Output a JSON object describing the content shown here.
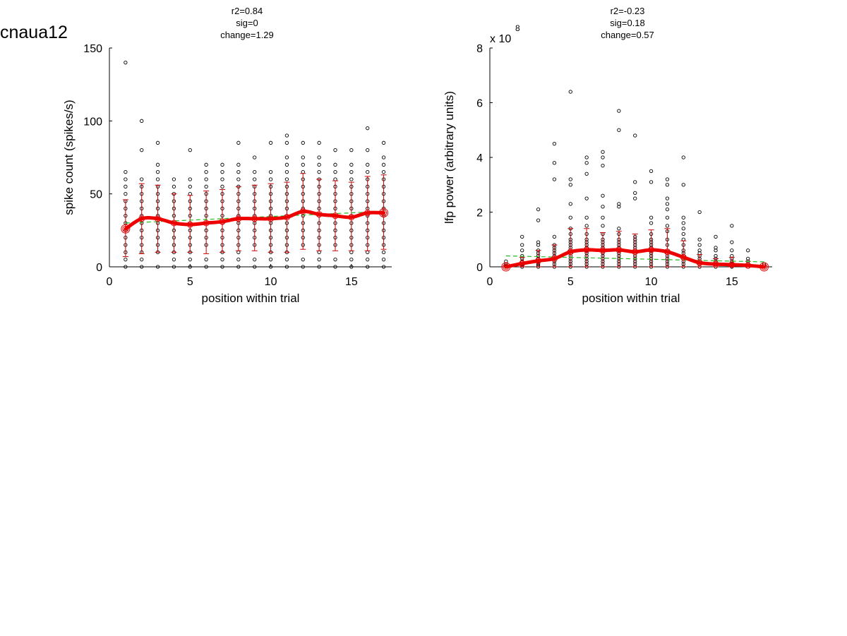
{
  "figure": {
    "title": "cnaua12"
  },
  "chart_data": [
    {
      "type": "scatter",
      "title_lines": [
        "r2=0.84",
        "sig=0",
        "change=1.29"
      ],
      "xlabel": "position within trial",
      "ylabel": "spike count (spikes/s)",
      "exponent_label": "",
      "xlim": [
        0,
        17.5
      ],
      "ylim": [
        0,
        150
      ],
      "xticks": [
        0,
        5,
        10,
        15
      ],
      "yticks": [
        0,
        50,
        100,
        150
      ],
      "colors": {
        "points": "#000000",
        "mean": "#ee0000",
        "errorbar": "#cc0000",
        "fit": "#22bb22"
      },
      "points": [
        {
          "x": 1,
          "y": [
            0,
            5,
            10,
            15,
            20,
            25,
            30,
            35,
            40,
            45,
            50,
            55,
            60,
            65,
            140
          ]
        },
        {
          "x": 2,
          "y": [
            0,
            5,
            10,
            15,
            20,
            25,
            30,
            35,
            40,
            45,
            50,
            55,
            60,
            80,
            100
          ]
        },
        {
          "x": 3,
          "y": [
            0,
            10,
            15,
            20,
            25,
            30,
            35,
            40,
            45,
            50,
            55,
            60,
            65,
            70,
            85
          ]
        },
        {
          "x": 4,
          "y": [
            0,
            5,
            10,
            15,
            20,
            25,
            30,
            35,
            40,
            45,
            50,
            55,
            60
          ]
        },
        {
          "x": 5,
          "y": [
            0,
            5,
            10,
            15,
            20,
            25,
            30,
            35,
            40,
            45,
            50,
            55,
            60,
            80
          ]
        },
        {
          "x": 6,
          "y": [
            0,
            5,
            15,
            20,
            25,
            30,
            35,
            40,
            45,
            50,
            55,
            60,
            65,
            70
          ]
        },
        {
          "x": 7,
          "y": [
            0,
            5,
            10,
            15,
            20,
            25,
            30,
            35,
            40,
            45,
            50,
            55,
            60,
            65,
            70
          ]
        },
        {
          "x": 8,
          "y": [
            0,
            5,
            10,
            15,
            20,
            25,
            30,
            35,
            40,
            45,
            50,
            55,
            60,
            65,
            70,
            85
          ]
        },
        {
          "x": 9,
          "y": [
            0,
            5,
            15,
            20,
            25,
            30,
            35,
            40,
            45,
            50,
            55,
            60,
            65,
            75
          ]
        },
        {
          "x": 10,
          "y": [
            0,
            5,
            10,
            15,
            20,
            25,
            30,
            35,
            40,
            45,
            50,
            55,
            60,
            65,
            85
          ]
        },
        {
          "x": 11,
          "y": [
            0,
            5,
            10,
            15,
            20,
            25,
            30,
            35,
            40,
            45,
            50,
            55,
            60,
            65,
            70,
            75,
            85,
            90
          ]
        },
        {
          "x": 12,
          "y": [
            0,
            5,
            15,
            20,
            25,
            30,
            35,
            40,
            45,
            50,
            55,
            60,
            65,
            70,
            75,
            85
          ]
        },
        {
          "x": 13,
          "y": [
            0,
            5,
            10,
            15,
            20,
            25,
            30,
            35,
            40,
            45,
            50,
            55,
            60,
            65,
            70,
            75,
            85
          ]
        },
        {
          "x": 14,
          "y": [
            0,
            5,
            15,
            20,
            25,
            30,
            35,
            40,
            45,
            50,
            55,
            60,
            65,
            70,
            80
          ]
        },
        {
          "x": 15,
          "y": [
            0,
            5,
            10,
            15,
            20,
            25,
            30,
            35,
            40,
            45,
            50,
            55,
            60,
            65,
            70,
            80
          ]
        },
        {
          "x": 16,
          "y": [
            0,
            5,
            10,
            15,
            20,
            25,
            30,
            35,
            40,
            45,
            50,
            55,
            60,
            65,
            70,
            80,
            95
          ]
        },
        {
          "x": 17,
          "y": [
            0,
            5,
            10,
            15,
            20,
            25,
            30,
            35,
            40,
            45,
            50,
            55,
            60,
            65,
            70,
            75,
            85
          ]
        }
      ],
      "mean": {
        "x": [
          1,
          2,
          3,
          4,
          5,
          6,
          7,
          8,
          9,
          10,
          11,
          12,
          13,
          14,
          15,
          16,
          17
        ],
        "y": [
          26,
          33,
          33,
          30,
          29,
          30,
          31,
          33,
          33,
          33,
          34,
          38,
          36,
          35,
          34,
          37,
          37
        ],
        "err_low": [
          7,
          9,
          10,
          10,
          10,
          9,
          10,
          11,
          11,
          10,
          10,
          12,
          11,
          11,
          11,
          11,
          12
        ],
        "err_high": [
          46,
          57,
          56,
          50,
          49,
          52,
          53,
          55,
          56,
          57,
          58,
          64,
          60,
          59,
          58,
          62,
          63
        ]
      },
      "fit": {
        "x": [
          1,
          17
        ],
        "y": [
          30,
          38
        ]
      },
      "marker_x": [
        1,
        17
      ]
    },
    {
      "type": "scatter",
      "title_lines": [
        "r2=-0.23",
        "sig=0.18",
        "change=0.57"
      ],
      "xlabel": "position within trial",
      "ylabel": "lfp power (arbitrary units)",
      "exponent_label": "x 10",
      "exponent_power": "8",
      "xlim": [
        0,
        17.5
      ],
      "ylim": [
        0,
        8
      ],
      "xticks": [
        0,
        5,
        10,
        15
      ],
      "yticks": [
        0,
        2,
        4,
        6,
        8
      ],
      "colors": {
        "points": "#000000",
        "mean": "#ee0000",
        "errorbar": "#cc0000",
        "fit": "#22bb22"
      },
      "points": [
        {
          "x": 1,
          "y": [
            0,
            0.02,
            0.05,
            0.1,
            0.2
          ]
        },
        {
          "x": 2,
          "y": [
            0,
            0.05,
            0.1,
            0.2,
            0.3,
            0.4,
            0.6,
            0.8,
            1.1
          ]
        },
        {
          "x": 3,
          "y": [
            0,
            0.05,
            0.1,
            0.2,
            0.3,
            0.4,
            0.5,
            0.6,
            0.8,
            0.9,
            1.7,
            2.1
          ]
        },
        {
          "x": 4,
          "y": [
            0,
            0.1,
            0.2,
            0.3,
            0.4,
            0.5,
            0.6,
            0.7,
            0.8,
            1.1,
            3.2,
            3.8,
            4.5
          ]
        },
        {
          "x": 5,
          "y": [
            0,
            0.1,
            0.2,
            0.3,
            0.4,
            0.5,
            0.6,
            0.7,
            0.8,
            0.9,
            1.0,
            1.2,
            1.4,
            1.8,
            2.3,
            3.0,
            3.2,
            6.4
          ]
        },
        {
          "x": 6,
          "y": [
            0,
            0.1,
            0.2,
            0.3,
            0.4,
            0.5,
            0.6,
            0.7,
            0.8,
            0.9,
            1.0,
            1.2,
            1.5,
            1.8,
            2.5,
            3.4,
            3.8,
            4.0
          ]
        },
        {
          "x": 7,
          "y": [
            0,
            0.1,
            0.2,
            0.3,
            0.4,
            0.5,
            0.6,
            0.7,
            0.8,
            0.9,
            1.0,
            1.2,
            1.5,
            1.8,
            2.2,
            2.6,
            3.7,
            4.0,
            4.2
          ]
        },
        {
          "x": 8,
          "y": [
            0,
            0.1,
            0.2,
            0.3,
            0.4,
            0.5,
            0.6,
            0.7,
            0.8,
            0.9,
            1.0,
            1.2,
            1.4,
            2.2,
            2.3,
            5.0,
            5.7
          ]
        },
        {
          "x": 9,
          "y": [
            0,
            0.1,
            0.2,
            0.3,
            0.4,
            0.5,
            0.6,
            0.7,
            0.8,
            0.9,
            1.0,
            1.1,
            2.5,
            2.7,
            3.1,
            4.8
          ]
        },
        {
          "x": 10,
          "y": [
            0,
            0.1,
            0.2,
            0.3,
            0.4,
            0.5,
            0.6,
            0.7,
            0.8,
            0.9,
            1.0,
            1.2,
            1.6,
            1.8,
            3.1,
            3.5
          ]
        },
        {
          "x": 11,
          "y": [
            0,
            0.1,
            0.2,
            0.3,
            0.4,
            0.5,
            0.6,
            0.8,
            1.0,
            1.3,
            1.5,
            1.8,
            2.1,
            2.3,
            2.5,
            3.0,
            3.2
          ]
        },
        {
          "x": 12,
          "y": [
            0,
            0.1,
            0.2,
            0.3,
            0.4,
            0.5,
            0.6,
            0.8,
            1.0,
            1.2,
            1.4,
            1.6,
            1.8,
            3.0,
            4.0
          ]
        },
        {
          "x": 13,
          "y": [
            0,
            0.1,
            0.2,
            0.3,
            0.4,
            0.5,
            0.6,
            0.8,
            1.0,
            2.0
          ]
        },
        {
          "x": 14,
          "y": [
            0,
            0.1,
            0.2,
            0.3,
            0.4,
            0.6,
            0.7,
            1.1
          ]
        },
        {
          "x": 15,
          "y": [
            0,
            0.1,
            0.2,
            0.3,
            0.4,
            0.6,
            0.9,
            1.5
          ]
        },
        {
          "x": 16,
          "y": [
            0,
            0.05,
            0.1,
            0.2,
            0.3,
            0.6
          ]
        },
        {
          "x": 17,
          "y": [
            0,
            0.05,
            0.1
          ]
        }
      ],
      "mean": {
        "x": [
          1,
          2,
          3,
          4,
          5,
          6,
          7,
          8,
          9,
          10,
          11,
          12,
          13,
          14,
          15,
          16,
          17
        ],
        "y": [
          0,
          0.12,
          0.22,
          0.3,
          0.55,
          0.62,
          0.6,
          0.62,
          0.55,
          0.62,
          0.55,
          0.35,
          0.15,
          0.1,
          0.08,
          0.05,
          0
        ],
        "err_low": [
          0,
          0,
          0,
          0,
          0,
          0,
          0,
          0,
          0,
          0,
          0,
          0,
          0,
          0,
          0,
          0,
          0
        ],
        "err_high": [
          0.05,
          0.35,
          0.6,
          0.8,
          1.4,
          1.4,
          1.25,
          1.3,
          1.2,
          1.35,
          1.4,
          0.95,
          0.45,
          0.3,
          0.35,
          0.2,
          0.05
        ]
      },
      "fit": {
        "x": [
          1,
          17
        ],
        "y": [
          0.4,
          0.18
        ]
      },
      "marker_x": [
        1,
        17
      ]
    }
  ]
}
